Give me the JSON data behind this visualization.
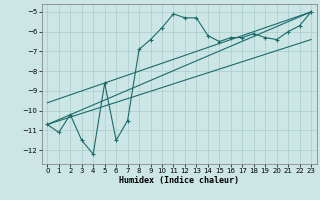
{
  "title": "",
  "xlabel": "Humidex (Indice chaleur)",
  "background_color": "#cce5e5",
  "grid_color": "#aacccc",
  "line_color": "#1a6b6b",
  "xlim": [
    -0.5,
    23.5
  ],
  "ylim": [
    -12.7,
    -4.6
  ],
  "yticks": [
    -12,
    -11,
    -10,
    -9,
    -8,
    -7,
    -6,
    -5
  ],
  "xticks": [
    0,
    1,
    2,
    3,
    4,
    5,
    6,
    7,
    8,
    9,
    10,
    11,
    12,
    13,
    14,
    15,
    16,
    17,
    18,
    19,
    20,
    21,
    22,
    23
  ],
  "curve1_x": [
    0,
    1,
    2,
    3,
    4,
    5,
    6,
    7,
    8,
    9,
    10,
    11,
    12,
    13,
    14,
    15,
    16,
    17,
    18,
    19,
    20,
    21,
    22,
    23
  ],
  "curve1_y": [
    -10.7,
    -11.1,
    -10.2,
    -11.5,
    -12.2,
    -8.6,
    -11.5,
    -10.5,
    -6.9,
    -6.4,
    -5.8,
    -5.1,
    -5.3,
    -5.3,
    -6.2,
    -6.5,
    -6.3,
    -6.3,
    -6.1,
    -6.3,
    -6.4,
    -6.0,
    -5.7,
    -5.0
  ],
  "curve2_x": [
    0,
    23
  ],
  "curve2_y": [
    -10.7,
    -5.0
  ],
  "curve3_x": [
    0,
    23
  ],
  "curve3_y": [
    -9.6,
    -5.0
  ],
  "curve4_x": [
    0,
    23
  ],
  "curve4_y": [
    -10.7,
    -6.4
  ]
}
